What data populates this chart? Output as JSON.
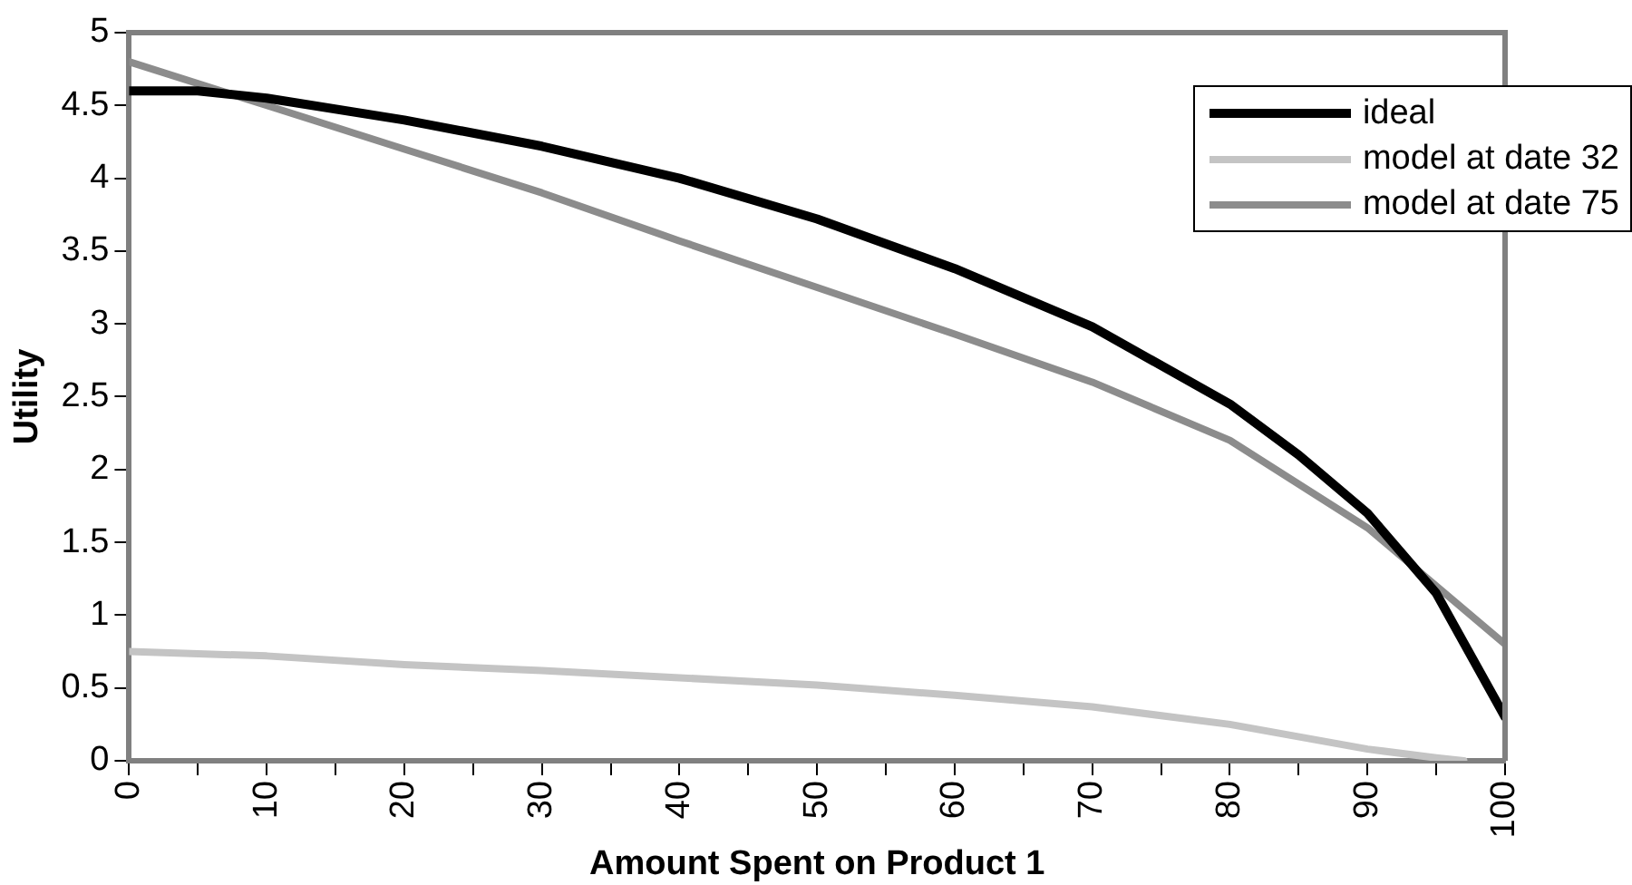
{
  "chart_data": {
    "type": "line",
    "xlabel": "Amount Spent on Product 1",
    "ylabel": "Utility",
    "xlim": [
      0,
      100
    ],
    "ylim": [
      0,
      5
    ],
    "xticks": [
      0,
      {
        "value": 5,
        "label": null
      },
      10,
      {
        "value": 15,
        "label": null
      },
      20,
      {
        "value": 25,
        "label": null
      },
      30,
      {
        "value": 35,
        "label": null
      },
      40,
      {
        "value": 45,
        "label": null
      },
      50,
      {
        "value": 55,
        "label": null
      },
      60,
      {
        "value": 65,
        "label": null
      },
      70,
      {
        "value": 75,
        "label": null
      },
      80,
      {
        "value": 85,
        "label": null
      },
      90,
      {
        "value": 95,
        "label": null
      },
      100
    ],
    "yticks": [
      0,
      0.5,
      1,
      1.5,
      2,
      2.5,
      3,
      3.5,
      4,
      4.5,
      5
    ],
    "grid": false,
    "legend": "top right",
    "marker": "none",
    "line_style": "solid",
    "series": [
      {
        "name": "ideal",
        "color": "#000000",
        "x": [
          0,
          5,
          10,
          20,
          30,
          40,
          50,
          60,
          70,
          80,
          85,
          90,
          95,
          100
        ],
        "values": [
          4.6,
          4.6,
          4.55,
          4.4,
          4.22,
          4.0,
          3.72,
          3.38,
          2.98,
          2.45,
          2.1,
          1.7,
          1.15,
          0.3
        ]
      },
      {
        "name": "model at date 32",
        "color": "#c4c4c4",
        "x": [
          0,
          10,
          20,
          30,
          40,
          50,
          60,
          70,
          80,
          90,
          95,
          97
        ],
        "values": [
          0.75,
          0.72,
          0.66,
          0.62,
          0.57,
          0.52,
          0.45,
          0.37,
          0.25,
          0.08,
          0.02,
          0.0
        ]
      },
      {
        "name": "model at date 75",
        "color": "#8c8c8c",
        "x": [
          0,
          10,
          20,
          30,
          40,
          50,
          60,
          70,
          80,
          90,
          95,
          100
        ],
        "values": [
          4.8,
          4.5,
          4.2,
          3.9,
          3.57,
          3.25,
          2.93,
          2.6,
          2.2,
          1.6,
          1.2,
          0.8
        ]
      }
    ]
  }
}
